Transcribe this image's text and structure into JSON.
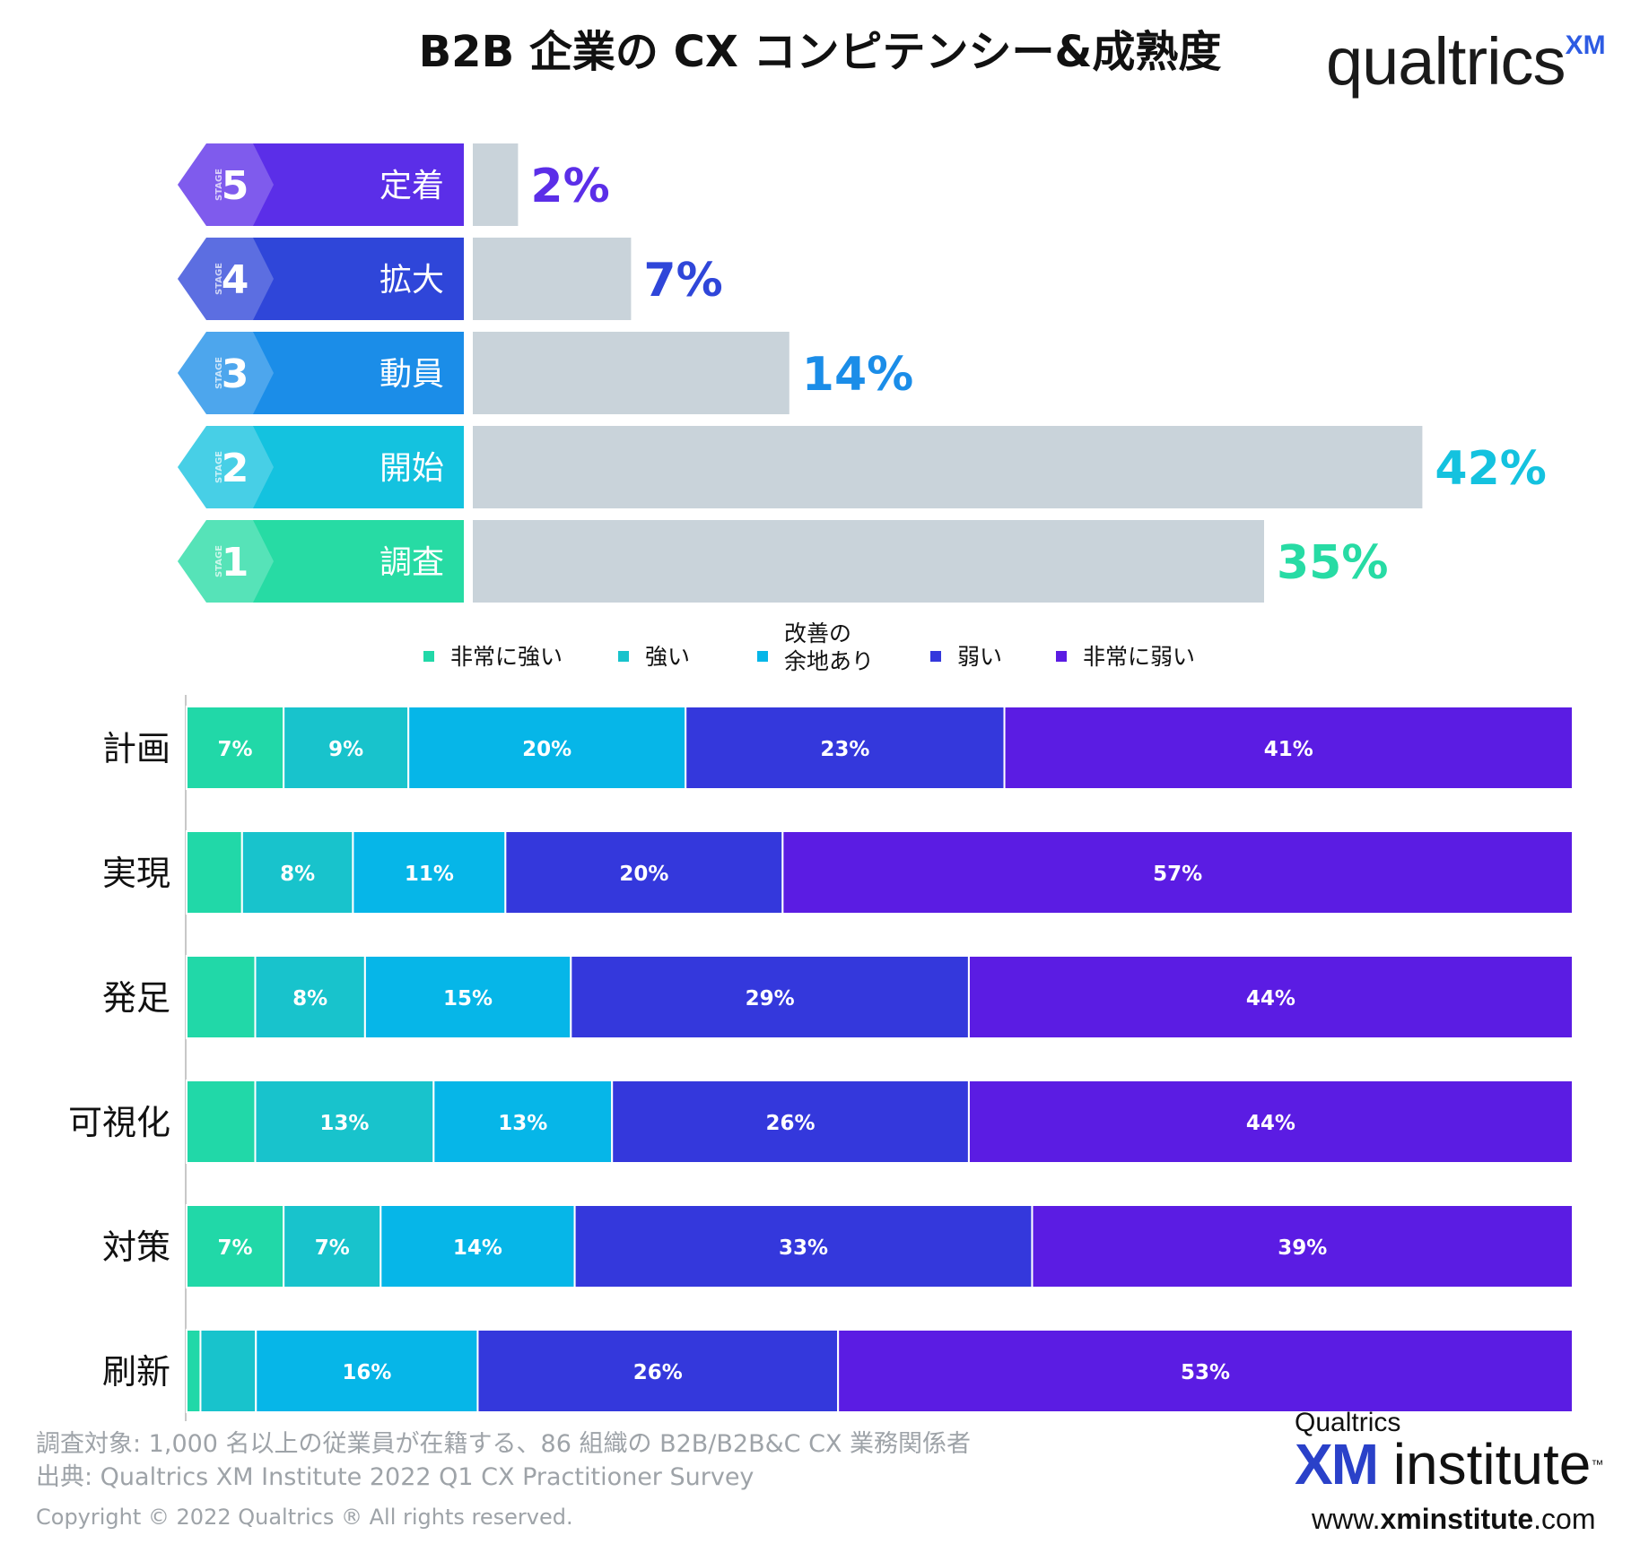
{
  "title": "B2B 企業の CX コンピテンシー&成熟度",
  "logo": {
    "word": "qualtrics",
    "mark": "XM"
  },
  "stages": [
    {
      "stage_tag": "STAGE",
      "num": "5",
      "name": "定着",
      "label": "2%",
      "value": 2,
      "color": "#5b2ee8"
    },
    {
      "stage_tag": "STAGE",
      "num": "4",
      "name": "拡大",
      "label": "7%",
      "value": 7,
      "color": "#2f46d9"
    },
    {
      "stage_tag": "STAGE",
      "num": "3",
      "name": "動員",
      "label": "14%",
      "value": 14,
      "color": "#1b8de8"
    },
    {
      "stage_tag": "STAGE",
      "num": "2",
      "name": "開始",
      "label": "42%",
      "value": 42,
      "color": "#14c2df"
    },
    {
      "stage_tag": "STAGE",
      "num": "1",
      "name": "調査",
      "label": "35%",
      "value": 35,
      "color": "#27dba4"
    }
  ],
  "legend": [
    {
      "label": "非常に強い",
      "color": "#21d8a8"
    },
    {
      "label": "強い",
      "color": "#18c3cc"
    },
    {
      "label": "改善の|余地あり",
      "color": "#06b6e8"
    },
    {
      "label": "弱い",
      "color": "#3438dc"
    },
    {
      "label": "非常に弱い",
      "color": "#5b1ce3"
    }
  ],
  "chart_data": [
    {
      "type": "bar",
      "orientation": "horizontal",
      "categories": [
        "定着",
        "拡大",
        "動員",
        "開始",
        "調査"
      ],
      "values": [
        2,
        7,
        14,
        42,
        35
      ],
      "value_labels": [
        "2%",
        "7%",
        "14%",
        "42%",
        "35%"
      ]
    },
    {
      "type": "bar",
      "stacked": true,
      "orientation": "horizontal",
      "categories": [
        "計画",
        "実現",
        "発足",
        "可視化",
        "対策",
        "刷新"
      ],
      "series": [
        {
          "name": "非常に強い",
          "values": [
            7,
            4,
            5,
            5,
            7,
            1
          ],
          "labels": [
            "7%",
            "",
            "",
            "",
            "7%",
            ""
          ]
        },
        {
          "name": "強い",
          "values": [
            9,
            8,
            8,
            13,
            7,
            4
          ],
          "labels": [
            "9%",
            "8%",
            "8%",
            "13%",
            "7%",
            ""
          ]
        },
        {
          "name": "改善の余地あり",
          "values": [
            20,
            11,
            15,
            13,
            14,
            16
          ],
          "labels": [
            "20%",
            "11%",
            "15%",
            "13%",
            "14%",
            "16%"
          ]
        },
        {
          "name": "弱い",
          "values": [
            23,
            20,
            29,
            26,
            33,
            26
          ],
          "labels": [
            "23%",
            "20%",
            "29%",
            "26%",
            "33%",
            "26%"
          ]
        },
        {
          "name": "非常に弱い",
          "values": [
            41,
            57,
            44,
            44,
            39,
            53
          ],
          "labels": [
            "41%",
            "57%",
            "44%",
            "44%",
            "39%",
            "53%"
          ]
        }
      ],
      "legend_position": "top"
    }
  ],
  "footer": {
    "survey": "調査対象: 1,000 名以上の従業員が在籍する、86 組織の B2B/B2B&C CX 業務関係者",
    "source": "出典: Qualtrics XM Institute 2022 Q1 CX Practitioner Survey",
    "copyright": "Copyright © 2022 Qualtrics ® All rights reserved."
  },
  "xm_institute": {
    "top": "Qualtrics",
    "xm": "XM",
    "institute": "institute",
    "tm": "™",
    "url_prefix": "www.",
    "url_bold": "xminstitute",
    "url_suffix": ".com"
  }
}
